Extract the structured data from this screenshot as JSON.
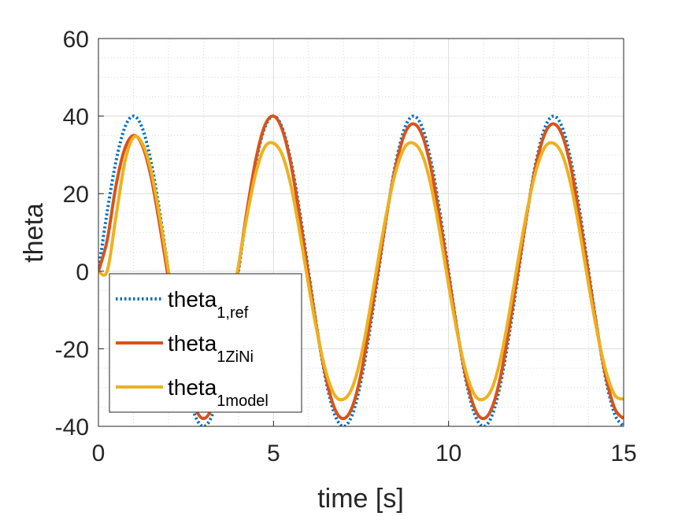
{
  "chart_data": {
    "type": "line",
    "xlabel": "time [s]",
    "ylabel": "theta",
    "xlim": [
      0,
      15
    ],
    "ylim": [
      -40,
      60
    ],
    "xticks": [
      "0",
      "5",
      "10",
      "15"
    ],
    "yticks": [
      "-40",
      "-20",
      "0",
      "20",
      "40",
      "60"
    ],
    "grid": true,
    "minor_grid": true,
    "legend_position": "bottom-left",
    "series": [
      {
        "name": "theta_{1,ref}",
        "legend_main": "theta",
        "legend_sub": "1,ref",
        "color": "#0072BD",
        "style": "dotted",
        "x": [
          0,
          0.25,
          0.5,
          0.75,
          1,
          1.25,
          1.5,
          1.75,
          2,
          2.25,
          2.5,
          2.75,
          3,
          3.25,
          3.5,
          3.75,
          4,
          4.25,
          4.5,
          4.75,
          5,
          5.25,
          5.5,
          5.75,
          6,
          6.25,
          6.5,
          6.75,
          7,
          7.25,
          7.5,
          7.75,
          8,
          8.25,
          8.5,
          8.75,
          9,
          9.25,
          9.5,
          9.75,
          10,
          10.25,
          10.5,
          10.75,
          11,
          11.25,
          11.5,
          11.75,
          12,
          12.25,
          12.5,
          12.75,
          13,
          13.25,
          13.5,
          13.75,
          14,
          14.25,
          14.5,
          14.75,
          15
        ],
        "y": [
          0,
          15.3,
          28.3,
          37,
          40,
          37,
          28.3,
          15.3,
          0,
          -15.3,
          -28.3,
          -37,
          -40,
          -37,
          -28.3,
          -15.3,
          0,
          15.3,
          28.3,
          37,
          40,
          37,
          28.3,
          15.3,
          0,
          -15.3,
          -28.3,
          -37,
          -40,
          -37,
          -28.3,
          -15.3,
          0,
          15.3,
          28.3,
          37,
          40,
          37,
          28.3,
          15.3,
          0,
          -15.3,
          -28.3,
          -37,
          -40,
          -37,
          -28.3,
          -15.3,
          0,
          15.3,
          28.3,
          37,
          40,
          37,
          28.3,
          15.3,
          0,
          -15.3,
          -28.3,
          -37,
          -40
        ]
      },
      {
        "name": "theta_{1ZiNi}",
        "legend_main": "theta",
        "legend_sub": "1ZiNi",
        "color": "#D95319",
        "style": "solid",
        "x": [
          0,
          0.25,
          0.5,
          0.75,
          1,
          1.25,
          1.5,
          1.75,
          2,
          2.25,
          2.5,
          2.75,
          3,
          3.25,
          3.5,
          3.75,
          4,
          4.25,
          4.5,
          4.75,
          5,
          5.25,
          5.5,
          5.75,
          6,
          6.25,
          6.5,
          6.75,
          7,
          7.25,
          7.5,
          7.75,
          8,
          8.25,
          8.5,
          8.75,
          9,
          9.25,
          9.5,
          9.75,
          10,
          10.25,
          10.5,
          10.75,
          11,
          11.25,
          11.5,
          11.75,
          12,
          12.25,
          12.5,
          12.75,
          13,
          13.25,
          13.5,
          13.75,
          14,
          14.25,
          14.5,
          14.75,
          15
        ],
        "y": [
          0,
          8,
          22,
          31.5,
          35,
          32.5,
          24.5,
          12,
          -2,
          -15.5,
          -27,
          -35,
          -38,
          -35,
          -26.5,
          -13.5,
          1,
          16,
          29,
          37.5,
          40,
          36.5,
          27.5,
          14,
          -1,
          -15.5,
          -27.5,
          -35.5,
          -38,
          -35,
          -26.5,
          -13.5,
          1,
          15.5,
          27.5,
          35.5,
          38,
          35,
          26.5,
          13.5,
          -1,
          -15.5,
          -27.5,
          -35.5,
          -38,
          -35,
          -26.5,
          -13.5,
          1,
          15.5,
          27.5,
          35.5,
          38,
          35,
          26.5,
          13.5,
          -1,
          -15.5,
          -27.5,
          -35.5,
          -38
        ]
      },
      {
        "name": "theta_{1model}",
        "legend_main": "theta",
        "legend_sub": "1model",
        "color": "#EDB120",
        "style": "solid",
        "x": [
          0,
          0.25,
          0.5,
          0.75,
          1,
          1.25,
          1.5,
          1.75,
          2,
          2.25,
          2.5,
          2.75,
          3,
          3.25,
          3.5,
          3.75,
          4,
          4.25,
          4.5,
          4.75,
          5,
          5.25,
          5.5,
          5.75,
          6,
          6.25,
          6.5,
          6.75,
          7,
          7.25,
          7.5,
          7.75,
          8,
          8.25,
          8.5,
          8.75,
          9,
          9.25,
          9.5,
          9.75,
          10,
          10.25,
          10.5,
          10.75,
          11,
          11.25,
          11.5,
          11.75,
          12,
          12.25,
          12.5,
          12.75,
          13,
          13.25,
          13.5,
          13.75,
          14,
          14.25,
          14.5,
          14.75,
          15
        ],
        "y": [
          0,
          0,
          14,
          28,
          34.5,
          33,
          26,
          14,
          0,
          -13,
          -24.5,
          -31.5,
          -33,
          -31,
          -23.5,
          -12,
          1.5,
          14.5,
          25.5,
          32,
          33,
          30,
          22,
          10,
          -3.5,
          -16,
          -26,
          -32,
          -33,
          -30,
          -22,
          -10,
          3.5,
          16,
          26,
          32,
          33,
          30,
          22,
          10,
          -3.5,
          -16,
          -26,
          -32,
          -33,
          -30,
          -22,
          -10,
          3.5,
          16,
          26,
          32,
          33,
          30,
          22,
          10,
          -3.5,
          -16,
          -26,
          -32,
          -33
        ]
      }
    ]
  }
}
